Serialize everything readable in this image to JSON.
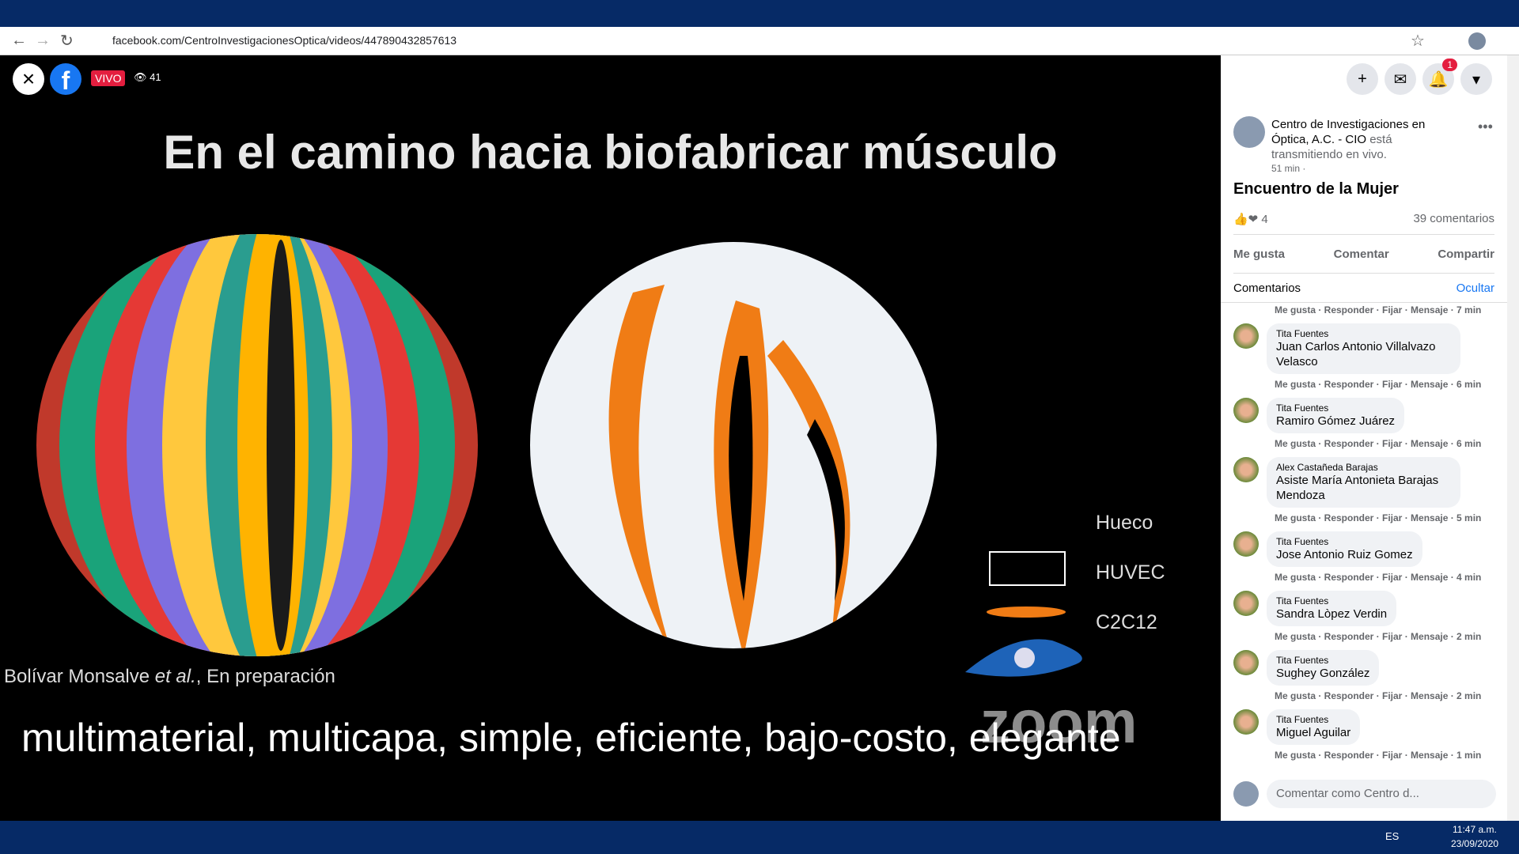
{
  "browser": {
    "url": "facebook.com/CentroInvestigacionesOptica/videos/447890432857613"
  },
  "video": {
    "live_label": "VIVO",
    "viewers": "41",
    "slide_title": "En el camino hacia biofabricar músculo",
    "legend": [
      "Hueco",
      "HUVEC",
      "C2C12"
    ],
    "citation_author": "Bolívar Monsalve ",
    "citation_etal": "et al.",
    "citation_rest": ", En preparación",
    "caption": "multimaterial, multicapa, simple, eficiente, bajo-costo, elegante",
    "watermark": "zoom"
  },
  "sidebar": {
    "notification_count": "1",
    "page_name": "Centro de Investigaciones en Óptica, A.C. - CIO",
    "status": " está transmitiendo en vivo.",
    "time": "51 min ·",
    "post_title": "Encuentro de la Mujer",
    "reactions": "4",
    "comment_count": "39 comentarios",
    "actions": [
      "Me gusta",
      "Comentar",
      "Compartir"
    ],
    "comments_header": "Comentarios",
    "hide": "Ocultar",
    "first_meta": "Me gusta · Responder · Fijar · Mensaje · 7 min",
    "comments": [
      {
        "author": "Tita Fuentes",
        "text": "Juan Carlos Antonio Villalvazo Velasco",
        "meta": "Me gusta · Responder · Fijar · Mensaje · 6 min"
      },
      {
        "author": "Tita Fuentes",
        "text": "Ramiro Gómez Juárez",
        "meta": "Me gusta · Responder · Fijar · Mensaje · 6 min"
      },
      {
        "author": "Alex Castañeda Barajas",
        "text": "Asiste María Antonieta Barajas Mendoza",
        "meta": "Me gusta · Responder · Fijar · Mensaje · 5 min"
      },
      {
        "author": "Tita Fuentes",
        "text": "Jose Antonio Ruiz Gomez",
        "meta": "Me gusta · Responder · Fijar · Mensaje · 4 min"
      },
      {
        "author": "Tita Fuentes",
        "text": "Sandra Lòpez Verdin",
        "meta": "Me gusta · Responder · Fijar · Mensaje · 2 min"
      },
      {
        "author": "Tita Fuentes",
        "text": "Sughey González",
        "meta": "Me gusta · Responder · Fijar · Mensaje · 2 min"
      },
      {
        "author": "Tita Fuentes",
        "text": "Miguel Aguilar",
        "meta": "Me gusta · Responder · Fijar · Mensaje · 1 min"
      }
    ],
    "comment_placeholder": "Comentar como Centro d..."
  },
  "taskbar": {
    "lang": "ES",
    "time": "11:47 a.m.",
    "date": "23/09/2020"
  }
}
